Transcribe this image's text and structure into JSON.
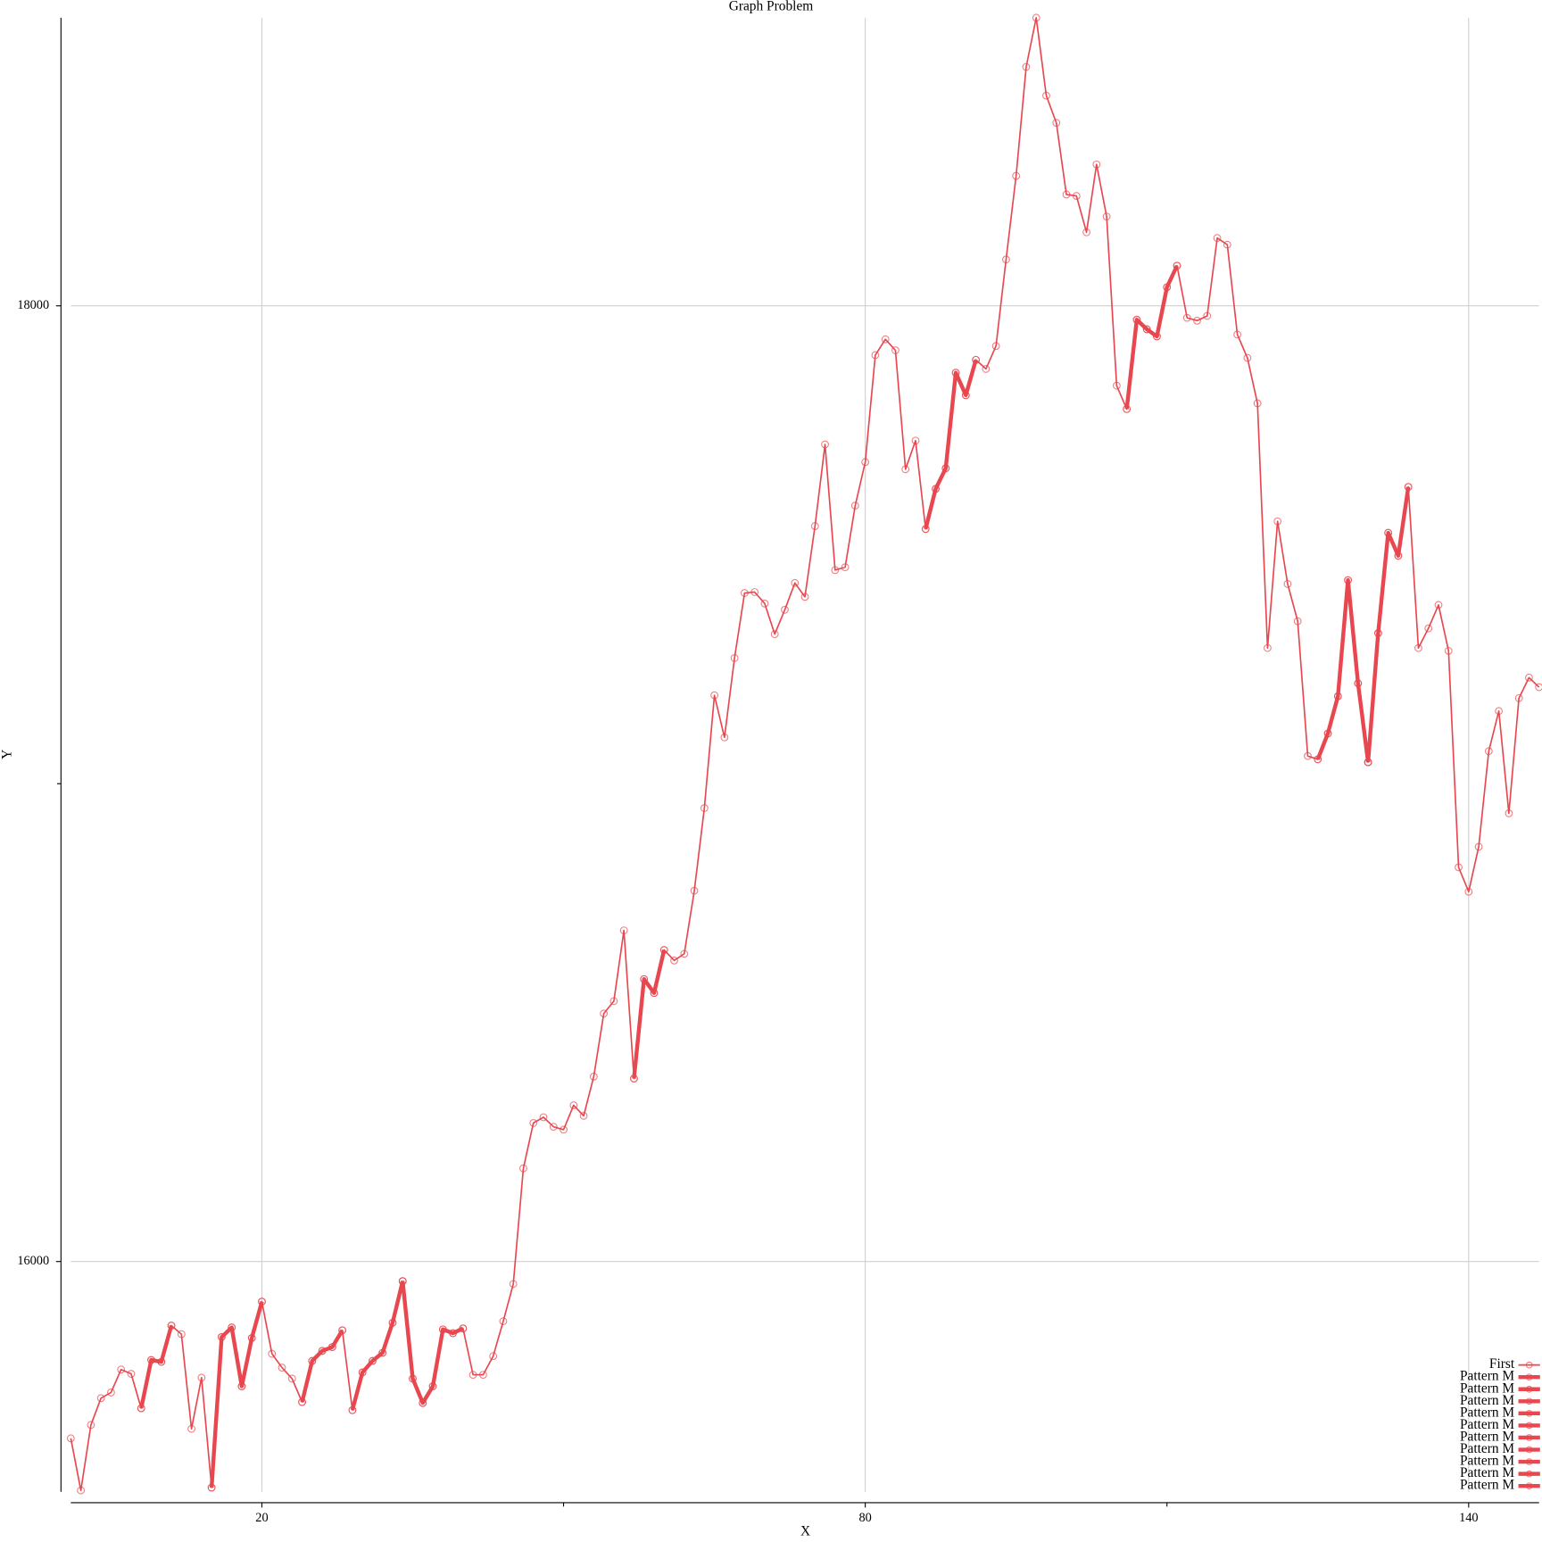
{
  "chart_data": {
    "type": "line",
    "title": "Graph Problem",
    "xlabel": "X",
    "ylabel": "Y",
    "xlim": [
      1,
      147
    ],
    "ylim": [
      15518,
      18603
    ],
    "xticks": [
      20,
      80,
      140
    ],
    "x_minor_ticks": [
      50,
      110
    ],
    "yticks": [
      16000,
      18000
    ],
    "y_minor_ticks": [
      17000
    ],
    "grid": true,
    "legend": "lower right",
    "marker": "open-circle",
    "series": [
      {
        "name": "First",
        "color": "#e8474f",
        "linewidth": 1.5,
        "x": [
          1,
          2,
          3,
          4,
          5,
          6,
          7,
          8,
          9,
          10,
          11,
          12,
          13,
          14,
          15,
          16,
          17,
          18,
          19,
          20,
          21,
          22,
          23,
          24,
          25,
          26,
          27,
          28,
          29,
          30,
          31,
          32,
          33,
          34,
          35,
          36,
          37,
          38,
          39,
          40,
          41,
          42,
          43,
          44,
          45,
          46,
          47,
          48,
          49,
          50,
          51,
          52,
          53,
          54,
          55,
          56,
          57,
          58,
          59,
          60,
          61,
          62,
          63,
          64,
          65,
          66,
          67,
          68,
          69,
          70,
          71,
          72,
          73,
          74,
          75,
          76,
          77,
          78,
          79,
          80,
          81,
          82,
          83,
          84,
          85,
          86,
          87,
          88,
          89,
          90,
          91,
          92,
          93,
          94,
          95,
          96,
          97,
          98,
          99,
          100,
          101,
          102,
          103,
          104,
          105,
          106,
          107,
          108,
          109,
          110,
          111,
          112,
          113,
          114,
          115,
          116,
          117,
          118,
          119,
          120,
          121,
          122,
          123,
          124,
          125,
          126,
          127,
          128,
          129,
          130,
          131,
          132,
          133,
          134,
          135,
          136,
          137,
          138,
          139,
          140,
          141,
          142,
          143,
          144,
          145,
          146,
          147
        ],
        "values": [
          15630,
          15521,
          15658,
          15714,
          15726,
          15774,
          15765,
          15693,
          15794,
          15790,
          15866,
          15848,
          15650,
          15757,
          15527,
          15842,
          15862,
          15739,
          15840,
          15916,
          15807,
          15778,
          15755,
          15706,
          15792,
          15813,
          15821,
          15856,
          15689,
          15768,
          15792,
          15809,
          15872,
          15959,
          15755,
          15704,
          15739,
          15858,
          15850,
          15860,
          15763,
          15763,
          15802,
          15875,
          15953,
          16195,
          16290,
          16302,
          16282,
          16276,
          16327,
          16305,
          16387,
          16519,
          16545,
          16693,
          16383,
          16591,
          16562,
          16652,
          16630,
          16644,
          16776,
          16949,
          17185,
          17097,
          17263,
          17399,
          17401,
          17377,
          17313,
          17364,
          17420,
          17391,
          17539,
          17710,
          17447,
          17453,
          17582,
          17673,
          17897,
          17930,
          17907,
          17658,
          17718,
          17533,
          17617,
          17660,
          17860,
          17813,
          17887,
          17868,
          17916,
          18097,
          18272,
          18500,
          18603,
          18440,
          18383,
          18233,
          18230,
          18154,
          18296,
          18187,
          17833,
          17784,
          17971,
          17951,
          17936,
          18039,
          18084,
          17975,
          17969,
          17979,
          18142,
          18128,
          17940,
          17891,
          17796,
          17284,
          17549,
          17418,
          17340,
          17058,
          17051,
          17105,
          17183,
          17426,
          17210,
          17045,
          17315,
          17525,
          17477,
          17621,
          17284,
          17325,
          17374,
          17278,
          16825,
          16774,
          16868,
          17068,
          17152,
          16938,
          17179,
          17222,
          17202
        ]
      },
      {
        "name": "Pattern M",
        "color": "#e8474f",
        "linewidth": 4,
        "x": [
          8,
          9,
          10,
          11
        ],
        "values": [
          15693,
          15794,
          15790,
          15866
        ]
      },
      {
        "name": "Pattern M",
        "color": "#e8474f",
        "linewidth": 4,
        "x": [
          15,
          16,
          17,
          18,
          19,
          20
        ],
        "values": [
          15527,
          15842,
          15862,
          15739,
          15840,
          15916
        ]
      },
      {
        "name": "Pattern M",
        "color": "#e8474f",
        "linewidth": 4,
        "x": [
          24,
          25,
          26,
          27,
          28
        ],
        "values": [
          15706,
          15792,
          15813,
          15821,
          15856
        ]
      },
      {
        "name": "Pattern M",
        "color": "#e8474f",
        "linewidth": 4,
        "x": [
          29,
          30,
          31,
          32,
          33,
          34
        ],
        "values": [
          15689,
          15768,
          15792,
          15809,
          15872,
          15959
        ]
      },
      {
        "name": "Pattern M",
        "color": "#e8474f",
        "linewidth": 4,
        "x": [
          34,
          35,
          36,
          37,
          38,
          39,
          40
        ],
        "values": [
          15959,
          15755,
          15704,
          15739,
          15858,
          15850,
          15860
        ]
      },
      {
        "name": "Pattern M",
        "color": "#e8474f",
        "linewidth": 4,
        "x": [
          57,
          58,
          59,
          60
        ],
        "values": [
          16383,
          16591,
          16562,
          16652
        ]
      },
      {
        "name": "Pattern M",
        "color": "#e8474f",
        "linewidth": 4,
        "x": [
          86,
          87,
          88,
          89,
          90,
          91
        ],
        "values": [
          17533,
          17617,
          17660,
          17860,
          17813,
          17887
        ]
      },
      {
        "name": "Pattern M",
        "color": "#e8474f",
        "linewidth": 4,
        "x": [
          106,
          107,
          108,
          109,
          110,
          111
        ],
        "values": [
          17784,
          17971,
          17951,
          17936,
          18039,
          18084
        ]
      },
      {
        "name": "Pattern M",
        "color": "#e8474f",
        "linewidth": 4,
        "x": [
          125,
          126,
          127,
          128,
          129,
          130
        ],
        "values": [
          17051,
          17105,
          17183,
          17426,
          17210,
          17045
        ]
      },
      {
        "name": "Pattern M",
        "color": "#e8474f",
        "linewidth": 4,
        "x": [
          130,
          131,
          132,
          133,
          134
        ],
        "values": [
          17045,
          17315,
          17525,
          17477,
          17621
        ]
      }
    ]
  }
}
